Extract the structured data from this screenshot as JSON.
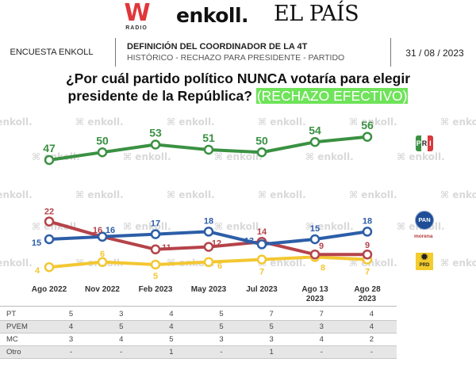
{
  "logos": {
    "wradio_main": "W",
    "wradio_sub": "RADIO",
    "enkoll": "enkoll.",
    "elpais": "EL PAÍS"
  },
  "header": {
    "left": "ENCUESTA ENKOLL",
    "title": "DEFINICIÓN DEL COORDINADOR DE LA 4T",
    "subtitle": "HISTÓRICO - RECHAZO PARA PRESIDENTE - PARTIDO",
    "date": "31 / 08 / 2023"
  },
  "question": {
    "line1": "¿Por cuál partido político NUNCA votaría para elegir",
    "line2": "presidente de la República?",
    "highlight": "(RECHAZO EFECTIVO)",
    "highlight_color": "#6fe35a"
  },
  "watermark": "enkoll.",
  "legend": {
    "pri": [
      "P",
      "R",
      "I"
    ],
    "pan": "PAN",
    "morena": "morena",
    "prd": "PRD"
  },
  "chart_data": {
    "type": "line",
    "title": "¿Por cuál partido político NUNCA votaría para elegir presidente de la República? (RECHAZO EFECTIVO)",
    "xlabel": "",
    "ylabel": "",
    "categories": [
      "Ago 2022",
      "Nov 2022",
      "Feb 2023",
      "May 2023",
      "Jul 2023",
      "Ago 13 2023",
      "Ago 28 2023"
    ],
    "category_lines": [
      [
        "Ago 2022"
      ],
      [
        "Nov 2022"
      ],
      [
        "Feb 2023"
      ],
      [
        "May 2023"
      ],
      [
        "Jul 2023"
      ],
      [
        "Ago 13",
        "2023"
      ],
      [
        "Ago 28",
        "2023"
      ]
    ],
    "series": [
      {
        "name": "PRI",
        "color": "#3a9142",
        "values": [
          47,
          50,
          53,
          51,
          50,
          54,
          56
        ]
      },
      {
        "name": "PAN",
        "color": "#2c5ea8",
        "values": [
          15,
          16,
          17,
          18,
          13,
          15,
          18
        ]
      },
      {
        "name": "MORENA",
        "color": "#b5434a",
        "values": [
          22,
          16,
          11,
          12,
          14,
          9,
          9
        ]
      },
      {
        "name": "PRD",
        "color": "#f3c732",
        "values": [
          4,
          6,
          5,
          6,
          7,
          8,
          7
        ]
      }
    ],
    "grid": false,
    "legend": "right",
    "table": {
      "rows": [
        {
          "label": "PT",
          "values": [
            "5",
            "3",
            "4",
            "5",
            "7",
            "7",
            "4"
          ]
        },
        {
          "label": "PVEM",
          "values": [
            "4",
            "5",
            "4",
            "5",
            "5",
            "3",
            "4"
          ]
        },
        {
          "label": "MC",
          "values": [
            "3",
            "4",
            "5",
            "3",
            "3",
            "4",
            "2"
          ]
        },
        {
          "label": "Otro",
          "values": [
            "-",
            "-",
            "1",
            "-",
            "1",
            "-",
            "-"
          ]
        }
      ]
    }
  }
}
